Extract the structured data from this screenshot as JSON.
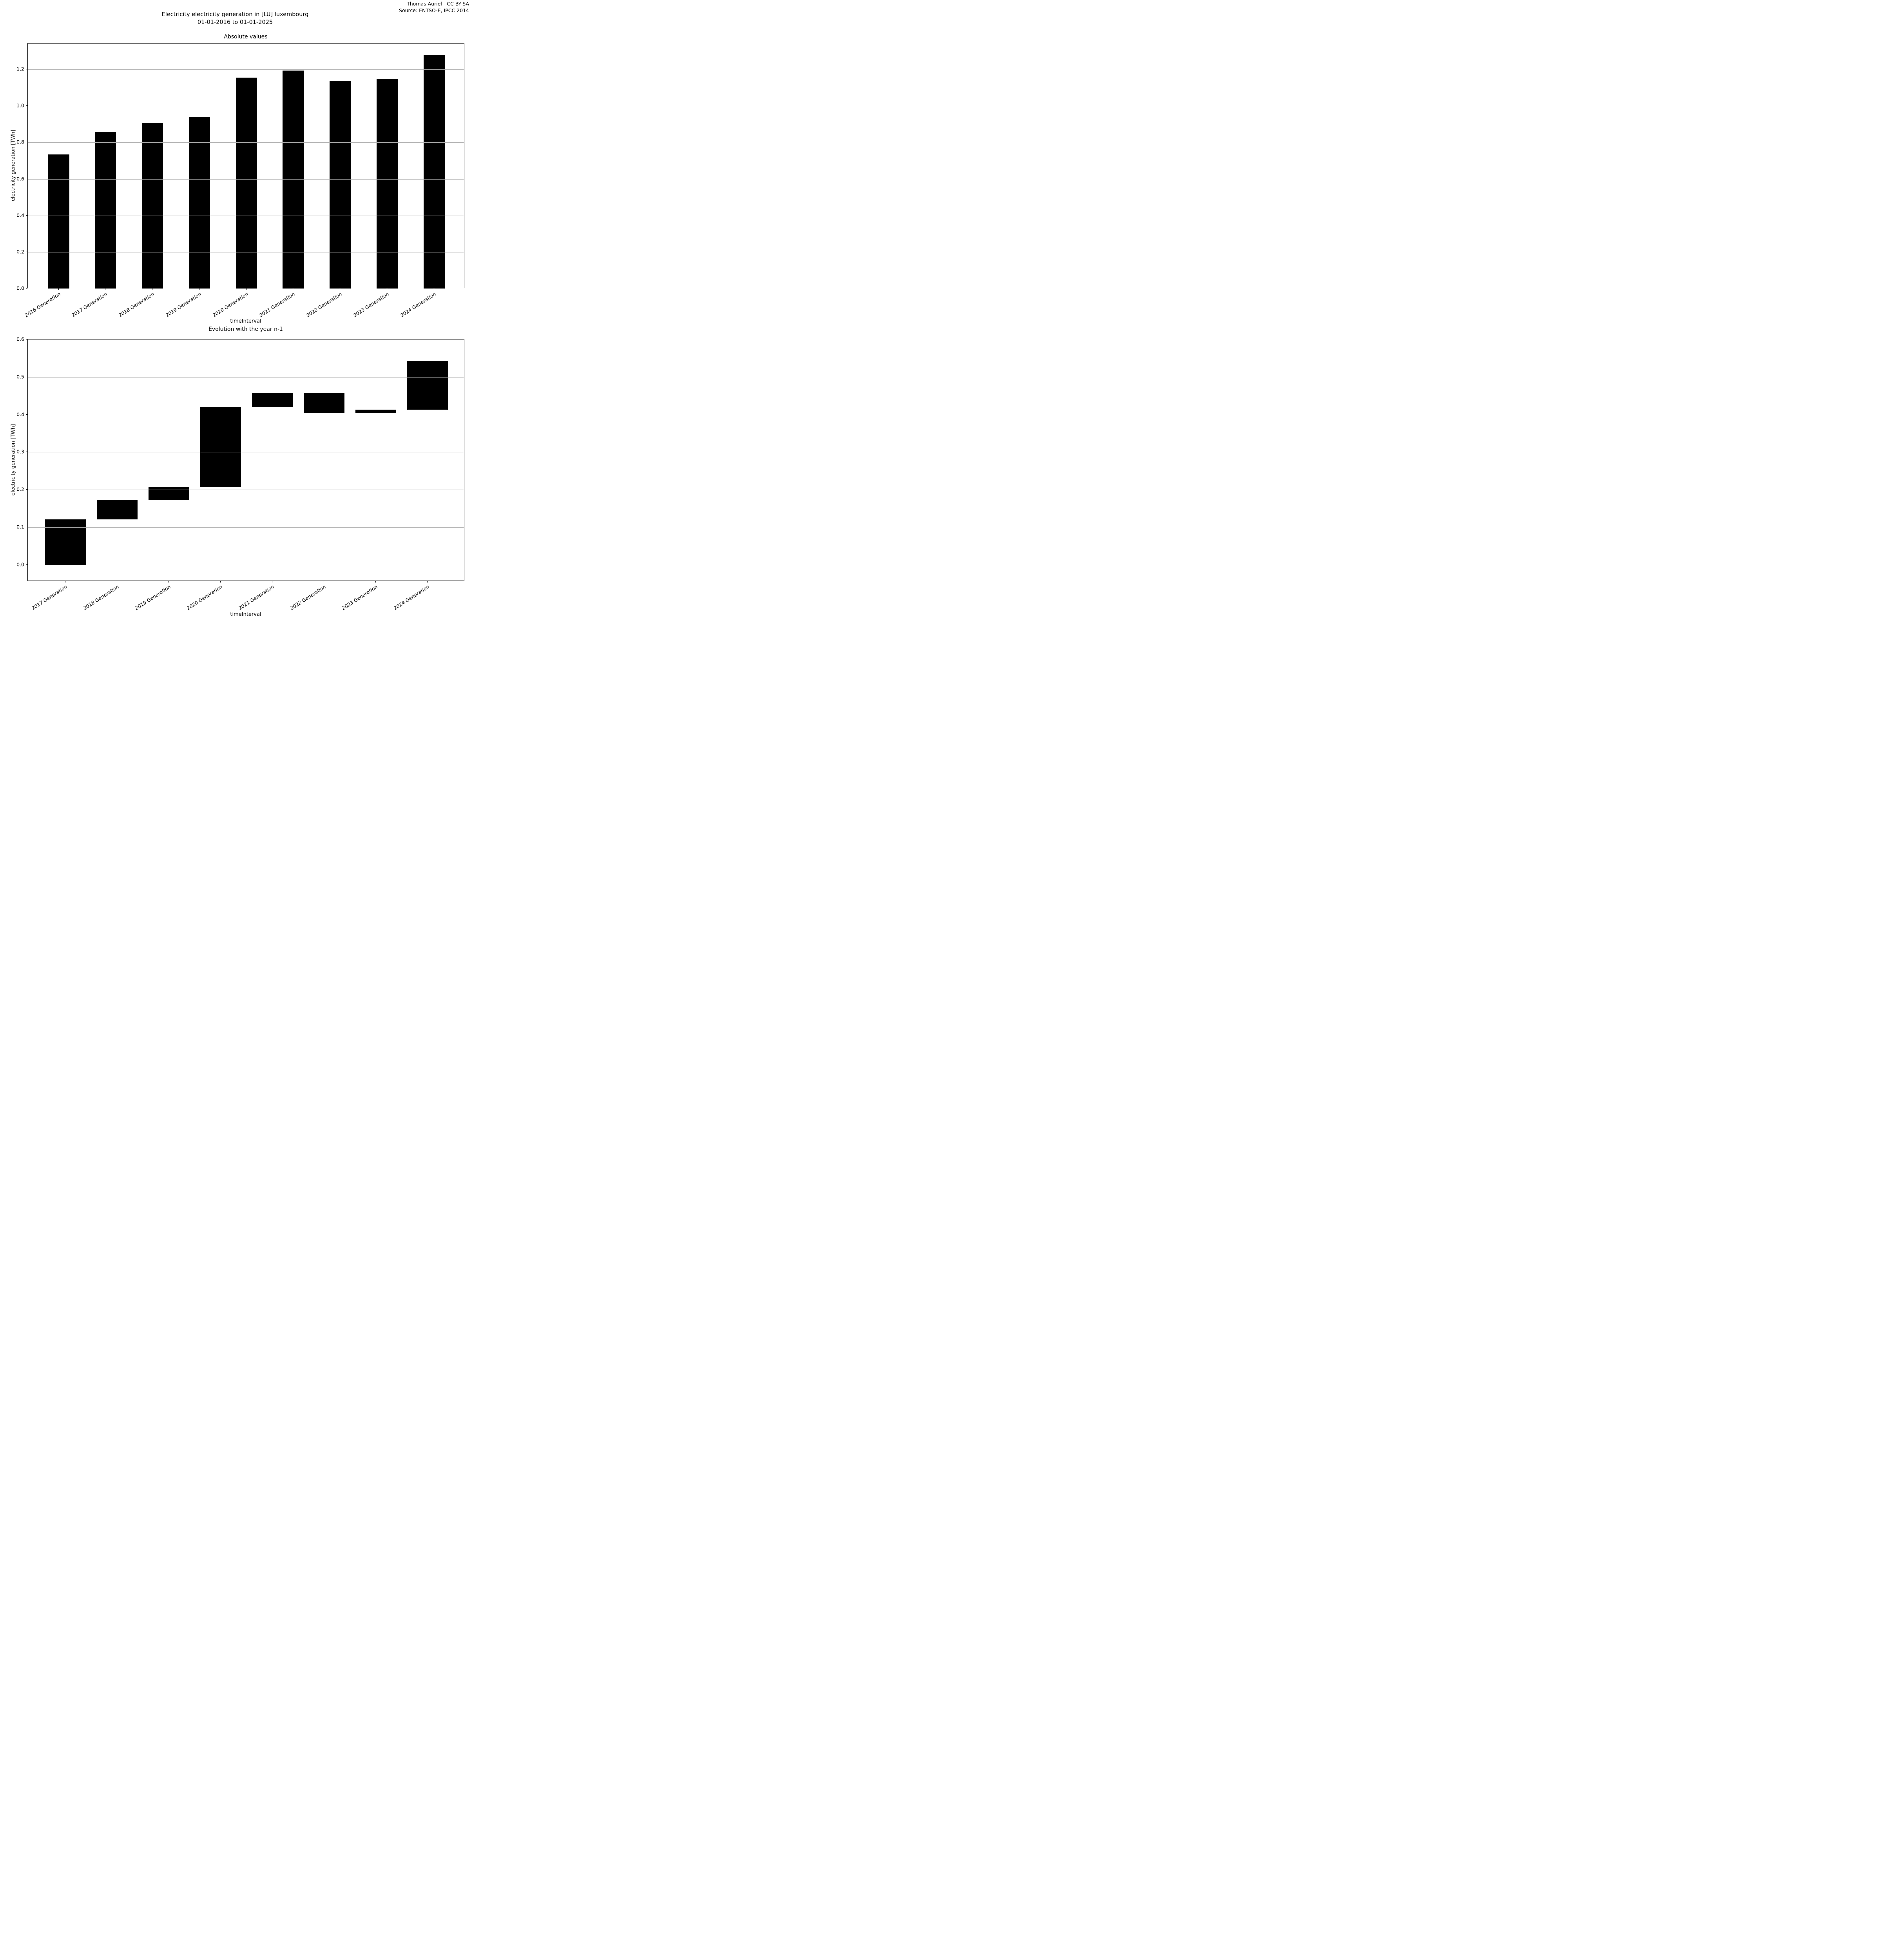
{
  "page": {
    "credit_line1": "Thomas Auriel - CC BY-SA",
    "credit_line2": "Source: ENTSO-E, IPCC 2014",
    "suptitle_line1": "Electricity electricity generation in [LU] luxembourg",
    "suptitle_line2": "01-01-2016 to 01-01-2025"
  },
  "chart_data": [
    {
      "type": "bar",
      "title": "Absolute values",
      "xlabel": "timeInterval",
      "ylabel": "electricity generation [TWh]",
      "categories": [
        "2016 Generation",
        "2017 Generation",
        "2018 Generation",
        "2019 Generation",
        "2020 Generation",
        "2021 Generation",
        "2022 Generation",
        "2023 Generation",
        "2024 Generation"
      ],
      "values": [
        0.735,
        0.856,
        0.908,
        0.941,
        1.155,
        1.193,
        1.139,
        1.148,
        1.278
      ],
      "yticks": [
        0.0,
        0.2,
        0.4,
        0.6,
        0.8,
        1.0,
        1.2
      ],
      "ytick_labels": [
        "0.0",
        "0.2",
        "0.4",
        "0.6",
        "0.8",
        "1.0",
        "1.2"
      ],
      "ylim": [
        0,
        1.342
      ],
      "grid": true,
      "legend": "none",
      "bar_color": "#000000",
      "grid_color": "#b0b0b0"
    },
    {
      "type": "waterfall",
      "title": "Evolution with the year n-1",
      "xlabel": "timeInterval",
      "ylabel": "electricity generation [TWh]",
      "categories": [
        "2017 Generation",
        "2018 Generation",
        "2019 Generation",
        "2020 Generation",
        "2021 Generation",
        "2022 Generation",
        "2023 Generation",
        "2024 Generation"
      ],
      "segments": [
        {
          "from": 0.0,
          "to": 0.121
        },
        {
          "from": 0.121,
          "to": 0.173
        },
        {
          "from": 0.173,
          "to": 0.206
        },
        {
          "from": 0.206,
          "to": 0.42
        },
        {
          "from": 0.42,
          "to": 0.458
        },
        {
          "from": 0.458,
          "to": 0.404
        },
        {
          "from": 0.404,
          "to": 0.413
        },
        {
          "from": 0.413,
          "to": 0.543
        }
      ],
      "yticks": [
        0.0,
        0.1,
        0.2,
        0.3,
        0.4,
        0.5,
        0.6
      ],
      "ytick_labels": [
        "0.0",
        "0.1",
        "0.2",
        "0.3",
        "0.4",
        "0.5",
        "0.6"
      ],
      "ylim": [
        -0.0441,
        0.6
      ],
      "grid": true,
      "legend": "none",
      "bar_color": "#000000",
      "grid_color": "#b0b0b0"
    }
  ]
}
